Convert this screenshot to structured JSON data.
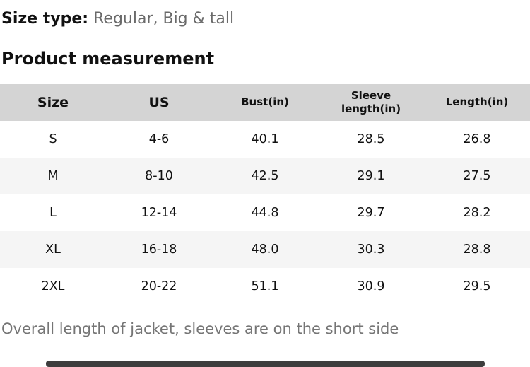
{
  "colors": {
    "header_bg": "#d4d4d4",
    "row_alt_bg": "#f5f5f5",
    "text_primary": "#111111",
    "text_secondary": "#6a6a6a",
    "footnote_color": "#757575",
    "scrollbar_color": "#3d3d3d"
  },
  "size_type": {
    "label": "Size type:",
    "value": "Regular, Big & tall"
  },
  "section_title": "Product measurement",
  "table": {
    "columns": [
      "Size",
      "US",
      "Bust(in)",
      "Sleeve length(in)",
      "Length(in)"
    ],
    "rows": [
      [
        "S",
        "4-6",
        "40.1",
        "28.5",
        "26.8"
      ],
      [
        "M",
        "8-10",
        "42.5",
        "29.1",
        "27.5"
      ],
      [
        "L",
        "12-14",
        "44.8",
        "29.7",
        "28.2"
      ],
      [
        "XL",
        "16-18",
        "48.0",
        "30.3",
        "28.8"
      ],
      [
        "2XL",
        "20-22",
        "51.1",
        "30.9",
        "29.5"
      ]
    ]
  },
  "footnote": "Overall length of jacket, sleeves are on the short side"
}
